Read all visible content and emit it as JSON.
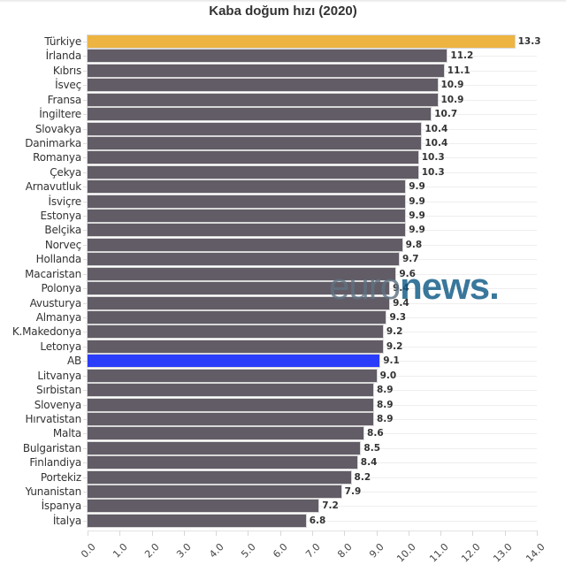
{
  "title": "Kaba doğum hızı (2020)",
  "watermark": {
    "part1": "euro",
    "part2": "news."
  },
  "colors": {
    "default_bar": "#625c66",
    "highlight_turkey": "#edb441",
    "highlight_eu": "#2a3dfa",
    "gridline": "#eeeeee"
  },
  "chart_data": {
    "type": "bar",
    "orientation": "horizontal",
    "title": "Kaba doğum hızı (2020)",
    "xlabel": "",
    "ylabel": "",
    "xlim": [
      0,
      14
    ],
    "x_ticks": [
      "0.0",
      "1.0",
      "2.0",
      "3.0",
      "4.0",
      "5.0",
      "6.0",
      "7.0",
      "8.0",
      "9.0",
      "10.0",
      "11.0",
      "12.0",
      "13.0",
      "14.0"
    ],
    "grid": "horizontal row lines",
    "legend": "none",
    "categories": [
      "Türkiye",
      "İrlanda",
      "Kıbrıs",
      "İsveç",
      "Fransa",
      "İngiltere",
      "Slovakya",
      "Danimarka",
      "Romanya",
      "Çekya",
      "Arnavutluk",
      "İsviçre",
      "Estonya",
      "Belçika",
      "Norveç",
      "Hollanda",
      "Macaristan",
      "Polonya",
      "Avusturya",
      "Almanya",
      "K.Makedonya",
      "Letonya",
      "AB",
      "Litvanya",
      "Sırbistan",
      "Slovenya",
      "Hırvatistan",
      "Malta",
      "Bulgaristan",
      "Finlandiya",
      "Portekiz",
      "Yunanistan",
      "İspanya",
      "İtalya"
    ],
    "values": [
      13.3,
      11.2,
      11.1,
      10.9,
      10.9,
      10.7,
      10.4,
      10.4,
      10.3,
      10.3,
      9.9,
      9.9,
      9.9,
      9.9,
      9.8,
      9.7,
      9.6,
      9.4,
      9.4,
      9.3,
      9.2,
      9.2,
      9.1,
      9.0,
      8.9,
      8.9,
      8.9,
      8.6,
      8.5,
      8.4,
      8.2,
      7.9,
      7.2,
      6.8
    ],
    "value_labels": [
      "13.3",
      "11.2",
      "11.1",
      "10.9",
      "10.9",
      "10.7",
      "10.4",
      "10.4",
      "10.3",
      "10.3",
      "9.9",
      "9.9",
      "9.9",
      "9.9",
      "9.8",
      "9.7",
      "9.6",
      "9.4",
      "9.4",
      "9.3",
      "9.2",
      "9.2",
      "9.1",
      "9.0",
      "8.9",
      "8.9",
      "8.9",
      "8.6",
      "8.5",
      "8.4",
      "8.2",
      "7.9",
      "7.2",
      "6.8"
    ],
    "highlights": {
      "Türkiye": "#edb441",
      "AB": "#2a3dfa"
    }
  }
}
